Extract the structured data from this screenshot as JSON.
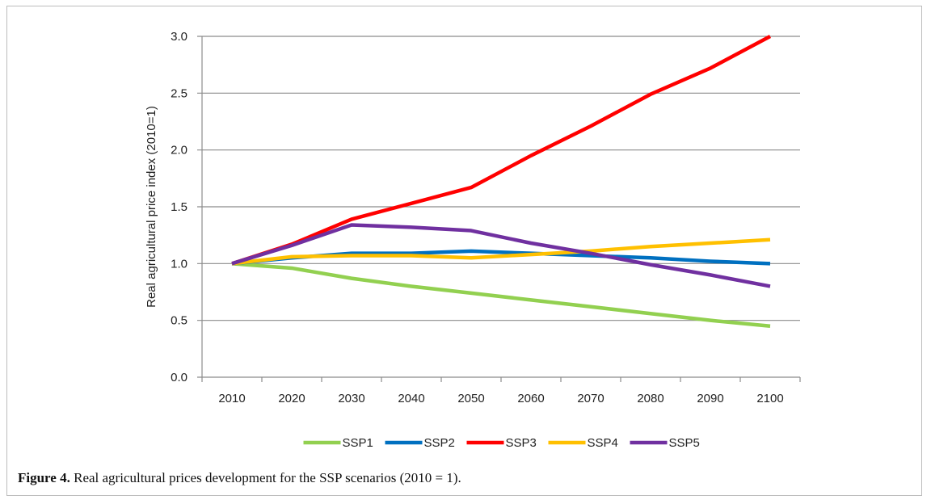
{
  "chart_data": {
    "type": "line",
    "title": "",
    "xlabel": "",
    "ylabel": "Real agricultural price index (2010=1)",
    "categories": [
      "2010",
      "2020",
      "2030",
      "2040",
      "2050",
      "2060",
      "2070",
      "2080",
      "2090",
      "2100"
    ],
    "ylim": [
      0,
      3
    ],
    "yticks": [
      "0.0",
      "0.5",
      "1.0",
      "1.5",
      "2.0",
      "2.5",
      "3.0"
    ],
    "grid": "horizontal",
    "legend_position": "bottom",
    "series": [
      {
        "name": "SSP1",
        "color": "#92d050",
        "values": [
          1.0,
          0.96,
          0.87,
          0.8,
          0.74,
          0.68,
          0.62,
          0.56,
          0.5,
          0.45
        ]
      },
      {
        "name": "SSP2",
        "color": "#0070c0",
        "values": [
          1.0,
          1.05,
          1.09,
          1.09,
          1.11,
          1.09,
          1.07,
          1.05,
          1.02,
          1.0
        ]
      },
      {
        "name": "SSP3",
        "color": "#ff0000",
        "values": [
          1.0,
          1.17,
          1.39,
          1.53,
          1.67,
          1.95,
          2.21,
          2.49,
          2.72,
          3.0
        ]
      },
      {
        "name": "SSP4",
        "color": "#ffc000",
        "values": [
          1.0,
          1.06,
          1.07,
          1.07,
          1.05,
          1.08,
          1.11,
          1.15,
          1.18,
          1.21
        ]
      },
      {
        "name": "SSP5",
        "color": "#7030a0",
        "values": [
          1.0,
          1.16,
          1.34,
          1.32,
          1.29,
          1.18,
          1.09,
          0.99,
          0.9,
          0.8
        ]
      }
    ]
  },
  "caption": {
    "label": "Figure 4.",
    "text": " Real agricultural prices development for the SSP scenarios (2010 = 1)."
  }
}
